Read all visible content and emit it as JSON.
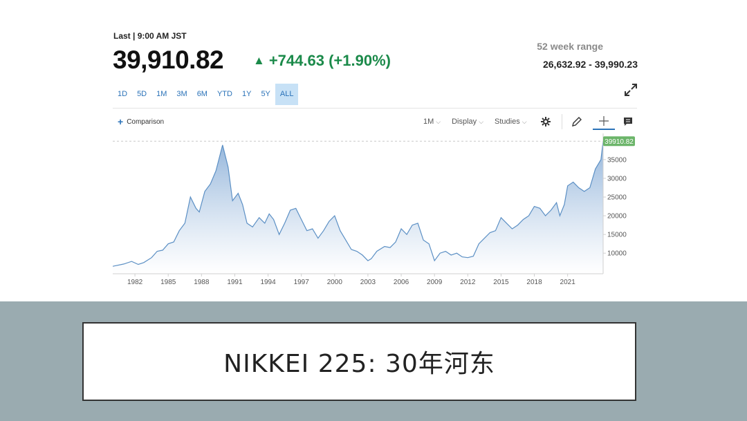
{
  "quote": {
    "last_label": "Last | 9:00 AM JST",
    "price": "39,910.82",
    "change": "+744.63 (+1.90%)",
    "range_label": "52 week range",
    "range_value": "26,632.92 - 39,990.23"
  },
  "periods": [
    "1D",
    "5D",
    "1M",
    "3M",
    "6M",
    "YTD",
    "1Y",
    "5Y",
    "ALL"
  ],
  "active_period": "ALL",
  "toolbar": {
    "comparison": "Comparison",
    "interval": "1M",
    "display": "Display",
    "studies": "Studies"
  },
  "colors": {
    "accent": "#2a72b8",
    "up": "#1b8a4a",
    "line": "#5b8fc4",
    "last_tag": "#6cb56a",
    "band": "#9aabb0"
  },
  "footer": {
    "title": "NIKKEI 225: 30年河东"
  },
  "chart_data": {
    "type": "area",
    "title": "",
    "xlabel": "",
    "ylabel": "",
    "xlim": [
      1980.0,
      2024.2
    ],
    "ylim": [
      4500,
      42000
    ],
    "x_ticks": [
      1982,
      1985,
      1988,
      1991,
      1994,
      1997,
      2000,
      2003,
      2006,
      2009,
      2012,
      2015,
      2018,
      2021
    ],
    "y_ticks": [
      10000,
      15000,
      20000,
      25000,
      30000,
      35000
    ],
    "last_value_label": "39910.82",
    "last_value": 39910.82,
    "grid": false,
    "series": [
      {
        "x": [
          1980.0,
          1981.0,
          1981.7,
          1982.3,
          1982.8,
          1983.5,
          1984.0,
          1984.5,
          1985.0,
          1985.5,
          1986.0,
          1986.5,
          1987.0,
          1987.5,
          1987.8,
          1988.3,
          1988.8,
          1989.3,
          1989.9,
          1990.4,
          1990.8,
          1991.3,
          1991.7,
          1992.1,
          1992.6,
          1993.2,
          1993.7,
          1994.1,
          1994.5,
          1995.0,
          1995.5,
          1996.0,
          1996.5,
          1997.0,
          1997.5,
          1998.0,
          1998.5,
          1999.0,
          1999.5,
          2000.0,
          2000.5,
          2001.0,
          2001.5,
          2002.0,
          2002.5,
          2003.0,
          2003.3,
          2003.8,
          2004.5,
          2005.0,
          2005.5,
          2006.0,
          2006.5,
          2007.0,
          2007.5,
          2008.0,
          2008.5,
          2009.0,
          2009.5,
          2010.0,
          2010.5,
          2011.0,
          2011.5,
          2012.0,
          2012.5,
          2013.0,
          2013.5,
          2014.0,
          2014.5,
          2015.0,
          2015.5,
          2016.0,
          2016.5,
          2017.0,
          2017.5,
          2018.0,
          2018.5,
          2019.0,
          2019.5,
          2020.0,
          2020.3,
          2020.7,
          2021.0,
          2021.5,
          2022.0,
          2022.5,
          2023.0,
          2023.5,
          2024.0,
          2024.2
        ],
        "y": [
          6500,
          7100,
          7800,
          7000,
          7500,
          8800,
          10500,
          10800,
          12500,
          13000,
          16000,
          18000,
          25000,
          22000,
          21000,
          26500,
          28500,
          32000,
          38900,
          33000,
          24000,
          26000,
          23000,
          18000,
          17000,
          19500,
          18000,
          20500,
          19000,
          15000,
          18000,
          21500,
          22000,
          19000,
          16000,
          16500,
          14000,
          16000,
          18500,
          20000,
          16000,
          13500,
          11000,
          10500,
          9500,
          8000,
          8500,
          10500,
          11800,
          11500,
          13000,
          16500,
          15000,
          17500,
          18000,
          13500,
          12500,
          8000,
          10000,
          10500,
          9500,
          10000,
          9000,
          8800,
          9200,
          12500,
          14000,
          15500,
          16000,
          19500,
          18000,
          16500,
          17500,
          19000,
          20000,
          22500,
          22000,
          20000,
          21500,
          23500,
          20000,
          23000,
          28000,
          29000,
          27500,
          26500,
          27500,
          32500,
          35000,
          39910
        ]
      }
    ]
  }
}
